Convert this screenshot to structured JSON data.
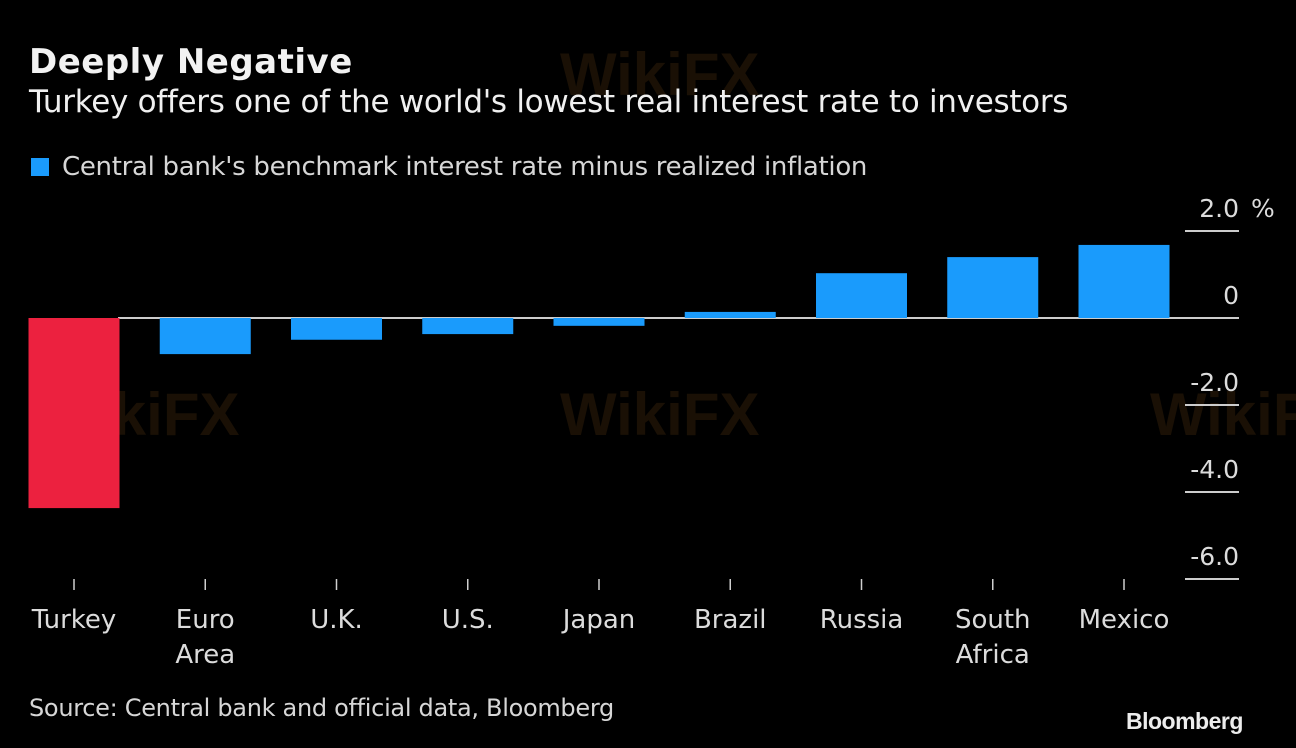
{
  "header": {
    "title": "Deeply Negative",
    "subtitle": "Turkey offers one of the world's lowest real interest rate to investors"
  },
  "legend": {
    "label": "Central bank's benchmark interest rate minus realized inflation",
    "color": "#1a9bfc"
  },
  "footer": {
    "source": "Source: Central bank and official data, Bloomberg",
    "brand": "Bloomberg"
  },
  "watermark": "WikiFX",
  "colors": {
    "positive_bar": "#1a9bfc",
    "highlight_bar": "#ec213f",
    "axis": "#cccccc",
    "background": "#000000"
  },
  "chart_data": {
    "type": "bar",
    "title": "Deeply Negative",
    "subtitle": "Turkey offers one of the world's lowest real interest rate to investors",
    "categories": [
      "Turkey",
      "Euro Area",
      "U.K.",
      "U.S.",
      "Japan",
      "Brazil",
      "Russia",
      "South Africa",
      "Mexico"
    ],
    "category_lines": [
      [
        "Turkey"
      ],
      [
        "Euro",
        "Area"
      ],
      [
        "U.K."
      ],
      [
        "U.S."
      ],
      [
        "Japan"
      ],
      [
        "Brazil"
      ],
      [
        "Russia"
      ],
      [
        "South",
        "Africa"
      ],
      [
        "Mexico"
      ]
    ],
    "series": [
      {
        "name": "Central bank's benchmark interest rate minus realized inflation",
        "values": [
          -4.37,
          -0.83,
          -0.5,
          -0.37,
          -0.18,
          0.14,
          1.03,
          1.4,
          1.68
        ],
        "highlight_index": 0
      }
    ],
    "ylim": [
      -6.0,
      2.0
    ],
    "yticks": [
      2.0,
      0,
      -2.0,
      -4.0,
      -6.0
    ],
    "ytick_labels": [
      "2.0",
      "0",
      "-2.0",
      "-4.0",
      "-6.0"
    ],
    "yunit": "%",
    "yaxis_position": "right",
    "xlabel": "",
    "ylabel": "",
    "legend_position": "top-left",
    "grid": false
  }
}
